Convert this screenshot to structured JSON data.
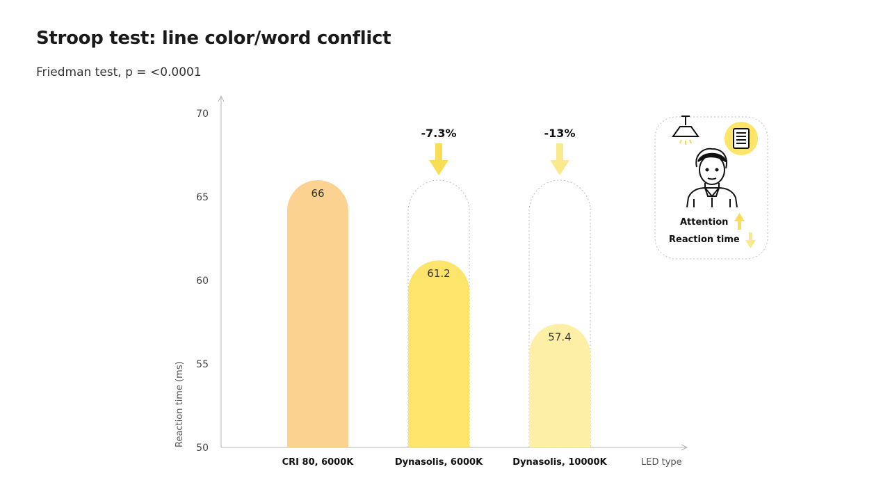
{
  "title": "Stroop test: line color/word conflict",
  "subtitle": "Friedman test, p = <0.0001",
  "chart_data": {
    "type": "bar",
    "categories": [
      "CRI 80, 6000K",
      "Dynasolis, 6000K",
      "Dynasolis, 10000K"
    ],
    "values": [
      66,
      61.2,
      57.4
    ],
    "value_labels": [
      "66",
      "61.2",
      "57.4"
    ],
    "change_labels": [
      "",
      "-7.3%",
      "-13%"
    ],
    "ylabel": "Reaction time (ms)",
    "xlabel": "LED type",
    "ylim": [
      50,
      70
    ],
    "yticks": [
      50,
      55,
      60,
      65,
      70
    ],
    "grid": false,
    "bar_colors": [
      "#fbd28f",
      "#fde46a",
      "#fdf0a6"
    ],
    "arrow_colors": [
      "",
      "#f9dd55",
      "#fbe98e"
    ]
  },
  "card": {
    "attention_label": "Attention",
    "reaction_label": "Reaction time",
    "icons": [
      "ceiling-lamp-icon",
      "document-icon",
      "person-icon",
      "arrow-up-icon",
      "arrow-down-icon"
    ],
    "accent": "#fde46a"
  }
}
